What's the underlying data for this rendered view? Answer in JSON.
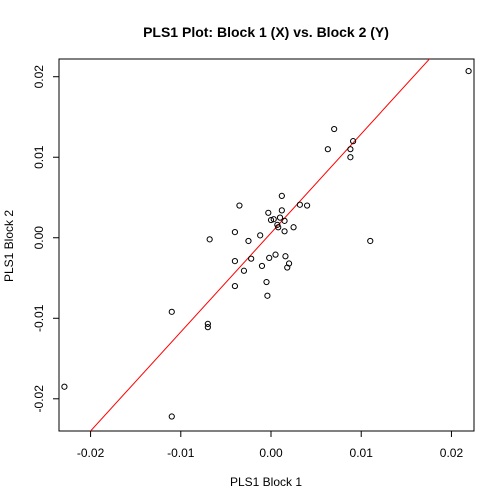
{
  "chart_data": {
    "type": "scatter",
    "title": "PLS1 Plot: Block 1 (X) vs. Block 2 (Y)",
    "xlabel": "PLS1 Block 1",
    "ylabel": "PLS1 Block 2",
    "xlim": [
      -0.0235,
      0.0225
    ],
    "ylim": [
      -0.024,
      0.0222
    ],
    "xticks": [
      -0.02,
      -0.01,
      0.0,
      0.01,
      0.02
    ],
    "xtick_labels": [
      "-0.02",
      "-0.01",
      "0.00",
      "0.01",
      "0.02"
    ],
    "yticks": [
      -0.02,
      -0.01,
      0.0,
      0.01,
      0.02
    ],
    "ytick_labels": [
      "-0.02",
      "-0.01",
      "0.00",
      "0.01",
      "0.02"
    ],
    "grid": false,
    "point_color": "#000000",
    "line_color": "#ff0000",
    "fit_line": {
      "slope": 1.23,
      "intercept": 0.0006
    },
    "points": [
      {
        "x": -0.0229,
        "y": -0.0185
      },
      {
        "x": -0.011,
        "y": -0.0092
      },
      {
        "x": -0.011,
        "y": -0.0222
      },
      {
        "x": -0.007,
        "y": -0.0111
      },
      {
        "x": -0.007,
        "y": -0.0107
      },
      {
        "x": -0.0068,
        "y": -0.0002
      },
      {
        "x": -0.004,
        "y": -0.006
      },
      {
        "x": -0.004,
        "y": -0.0029
      },
      {
        "x": -0.004,
        "y": 0.0007
      },
      {
        "x": -0.0035,
        "y": 0.004
      },
      {
        "x": -0.003,
        "y": -0.0041
      },
      {
        "x": -0.0025,
        "y": -0.0004
      },
      {
        "x": -0.0022,
        "y": -0.0026
      },
      {
        "x": -0.0012,
        "y": 0.0003
      },
      {
        "x": -0.001,
        "y": -0.0035
      },
      {
        "x": -0.0005,
        "y": -0.0055
      },
      {
        "x": -0.0004,
        "y": -0.0072
      },
      {
        "x": -0.0003,
        "y": 0.0031
      },
      {
        "x": -0.0002,
        "y": -0.0025
      },
      {
        "x": 0.0,
        "y": 0.0022
      },
      {
        "x": 0.0003,
        "y": 0.0023
      },
      {
        "x": 0.0005,
        "y": -0.0021
      },
      {
        "x": 0.0007,
        "y": 0.0016
      },
      {
        "x": 0.0008,
        "y": 0.0013
      },
      {
        "x": 0.001,
        "y": 0.0025
      },
      {
        "x": 0.0012,
        "y": 0.0052
      },
      {
        "x": 0.0012,
        "y": 0.0034
      },
      {
        "x": 0.0015,
        "y": 0.0021
      },
      {
        "x": 0.0015,
        "y": 0.0008
      },
      {
        "x": 0.0016,
        "y": -0.0023
      },
      {
        "x": 0.0018,
        "y": -0.0037
      },
      {
        "x": 0.002,
        "y": -0.0032
      },
      {
        "x": 0.0025,
        "y": 0.0013
      },
      {
        "x": 0.0032,
        "y": 0.0041
      },
      {
        "x": 0.004,
        "y": 0.004
      },
      {
        "x": 0.0063,
        "y": 0.011
      },
      {
        "x": 0.007,
        "y": 0.0135
      },
      {
        "x": 0.0088,
        "y": 0.01
      },
      {
        "x": 0.0088,
        "y": 0.011
      },
      {
        "x": 0.0091,
        "y": 0.012
      },
      {
        "x": 0.011,
        "y": -0.0004
      },
      {
        "x": 0.0219,
        "y": 0.0207
      }
    ]
  }
}
